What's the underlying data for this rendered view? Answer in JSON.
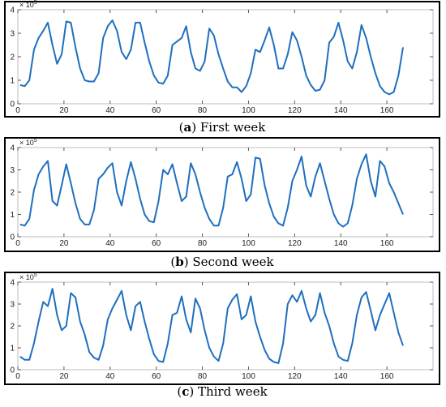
{
  "chart_data": [
    {
      "type": "line",
      "caption_letter": "a",
      "caption_text": "First week",
      "multiplier_base": "× 10",
      "multiplier_exp": "5",
      "xlim": [
        0,
        180
      ],
      "ylim": [
        0,
        4
      ],
      "xticks": [
        0,
        20,
        40,
        60,
        80,
        100,
        120,
        140,
        160
      ],
      "yticks": [
        0,
        1,
        2,
        3,
        4
      ],
      "color": "#1f6fbf",
      "series": [
        {
          "x": [
            1,
            3,
            5,
            7,
            9,
            11,
            13,
            15,
            17,
            19,
            21,
            23,
            25,
            27,
            29,
            31,
            33,
            35,
            37,
            39,
            41,
            43,
            45,
            47,
            49,
            51,
            53,
            55,
            57,
            59,
            61,
            63,
            65,
            67,
            69,
            71,
            73,
            75,
            77,
            79,
            81,
            83,
            85,
            87,
            89,
            91,
            93,
            95,
            97,
            99,
            101,
            103,
            105,
            107,
            109,
            111,
            113,
            115,
            117,
            119,
            121,
            123,
            125,
            127,
            129,
            131,
            133,
            135,
            137,
            139,
            141,
            143,
            145,
            147,
            149,
            151,
            153,
            155,
            157,
            159,
            161,
            163,
            165,
            167
          ],
          "values": [
            0.8,
            0.75,
            1.0,
            2.3,
            2.8,
            3.1,
            3.45,
            2.5,
            1.7,
            2.1,
            3.5,
            3.45,
            2.4,
            1.5,
            1.0,
            0.95,
            0.95,
            1.3,
            2.8,
            3.3,
            3.55,
            3.1,
            2.2,
            1.9,
            2.3,
            3.45,
            3.45,
            2.6,
            1.8,
            1.2,
            0.9,
            0.85,
            1.2,
            2.5,
            2.65,
            2.8,
            3.3,
            2.2,
            1.5,
            1.4,
            1.8,
            3.2,
            2.9,
            2.1,
            1.5,
            0.95,
            0.7,
            0.7,
            0.5,
            0.75,
            1.3,
            2.3,
            2.2,
            2.7,
            3.25,
            2.5,
            1.5,
            1.5,
            2.1,
            3.05,
            2.7,
            2.0,
            1.2,
            0.8,
            0.55,
            0.6,
            1.0,
            2.6,
            2.85,
            3.45,
            2.7,
            1.8,
            1.5,
            2.2,
            3.35,
            2.8,
            2.0,
            1.3,
            0.75,
            0.5,
            0.4,
            0.5,
            1.2,
            2.4
          ]
        }
      ]
    },
    {
      "type": "line",
      "caption_letter": "b",
      "caption_text": "Second week",
      "multiplier_base": "× 10",
      "multiplier_exp": "5",
      "xlim": [
        0,
        180
      ],
      "ylim": [
        0,
        4
      ],
      "xticks": [
        0,
        20,
        40,
        60,
        80,
        100,
        120,
        140,
        160
      ],
      "yticks": [
        0,
        1,
        2,
        3,
        4
      ],
      "color": "#1f6fbf",
      "series": [
        {
          "x": [
            1,
            3,
            5,
            7,
            9,
            11,
            13,
            15,
            17,
            19,
            21,
            23,
            25,
            27,
            29,
            31,
            33,
            35,
            37,
            39,
            41,
            43,
            45,
            47,
            49,
            51,
            53,
            55,
            57,
            59,
            61,
            63,
            65,
            67,
            69,
            71,
            73,
            75,
            77,
            79,
            81,
            83,
            85,
            87,
            89,
            91,
            93,
            95,
            97,
            99,
            101,
            103,
            105,
            107,
            109,
            111,
            113,
            115,
            117,
            119,
            121,
            123,
            125,
            127,
            129,
            131,
            133,
            135,
            137,
            139,
            141,
            143,
            145,
            147,
            149,
            151,
            153,
            155,
            157,
            159,
            161,
            163,
            165,
            167
          ],
          "values": [
            0.55,
            0.5,
            0.8,
            2.1,
            2.8,
            3.15,
            3.4,
            1.6,
            1.4,
            2.3,
            3.25,
            2.4,
            1.5,
            0.8,
            0.55,
            0.55,
            1.2,
            2.6,
            2.8,
            3.1,
            3.3,
            2.0,
            1.4,
            2.5,
            3.35,
            2.6,
            1.7,
            1.0,
            0.7,
            0.65,
            1.6,
            3.0,
            2.8,
            3.25,
            2.4,
            1.6,
            1.8,
            3.3,
            2.8,
            2.0,
            1.3,
            0.8,
            0.5,
            0.5,
            1.3,
            2.7,
            2.8,
            3.35,
            2.6,
            1.6,
            1.9,
            3.55,
            3.5,
            2.3,
            1.5,
            0.9,
            0.6,
            0.5,
            1.3,
            2.5,
            3.0,
            3.6,
            2.3,
            1.8,
            2.7,
            3.3,
            2.5,
            1.7,
            1.0,
            0.6,
            0.45,
            0.6,
            1.4,
            2.6,
            3.25,
            3.7,
            2.5,
            1.8,
            3.4,
            3.15,
            2.4,
            2.0,
            1.5,
            1.0
          ]
        }
      ]
    },
    {
      "type": "line",
      "caption_letter": "c",
      "caption_text": "Third week",
      "multiplier_base": "× 10",
      "multiplier_exp": "5",
      "xlim": [
        0,
        180
      ],
      "ylim": [
        0,
        4
      ],
      "xticks": [
        0,
        20,
        40,
        60,
        80,
        100,
        120,
        140,
        160
      ],
      "yticks": [
        0,
        1,
        2,
        3,
        4
      ],
      "color": "#1f6fbf",
      "series": [
        {
          "x": [
            1,
            3,
            5,
            7,
            9,
            11,
            13,
            15,
            17,
            19,
            21,
            23,
            25,
            27,
            29,
            31,
            33,
            35,
            37,
            39,
            41,
            43,
            45,
            47,
            49,
            51,
            53,
            55,
            57,
            59,
            61,
            63,
            65,
            67,
            69,
            71,
            73,
            75,
            77,
            79,
            81,
            83,
            85,
            87,
            89,
            91,
            93,
            95,
            97,
            99,
            101,
            103,
            105,
            107,
            109,
            111,
            113,
            115,
            117,
            119,
            121,
            123,
            125,
            127,
            129,
            131,
            133,
            135,
            137,
            139,
            141,
            143,
            145,
            147,
            149,
            151,
            153,
            155,
            157,
            159,
            161,
            163,
            165,
            167
          ],
          "values": [
            0.6,
            0.45,
            0.45,
            1.2,
            2.2,
            3.1,
            2.9,
            3.7,
            2.5,
            1.8,
            2.0,
            3.5,
            3.3,
            2.2,
            1.6,
            0.8,
            0.55,
            0.45,
            1.1,
            2.3,
            2.8,
            3.2,
            3.6,
            2.5,
            1.8,
            2.9,
            3.1,
            2.2,
            1.4,
            0.7,
            0.4,
            0.35,
            1.2,
            2.5,
            2.6,
            3.35,
            2.3,
            1.7,
            3.25,
            2.8,
            1.8,
            1.0,
            0.6,
            0.4,
            1.2,
            2.8,
            3.2,
            3.45,
            2.3,
            2.5,
            3.35,
            2.2,
            1.5,
            0.9,
            0.5,
            0.35,
            0.3,
            1.2,
            3.0,
            3.4,
            3.1,
            3.6,
            2.8,
            2.2,
            2.5,
            3.5,
            2.6,
            2.0,
            1.2,
            0.6,
            0.45,
            0.4,
            1.2,
            2.5,
            3.3,
            3.55,
            2.7,
            1.8,
            2.5,
            3.0,
            3.5,
            2.6,
            1.7,
            1.1
          ]
        }
      ]
    }
  ]
}
